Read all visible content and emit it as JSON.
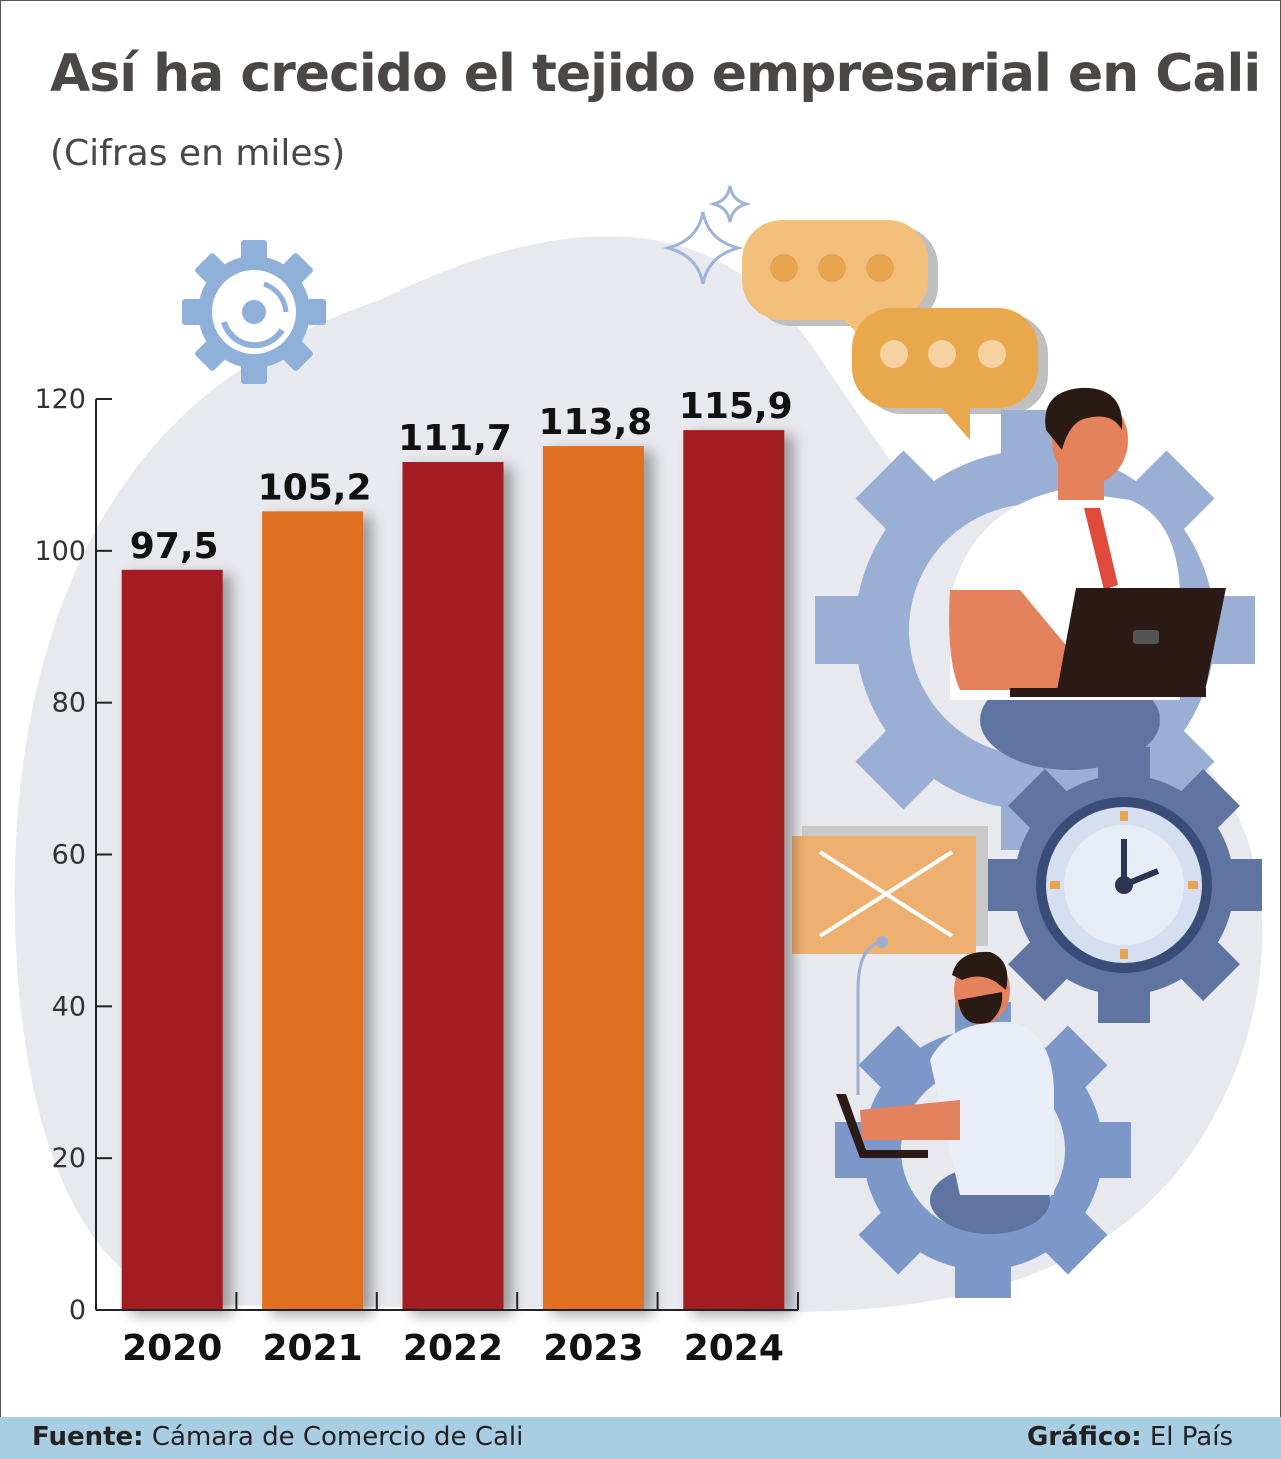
{
  "title": "Así ha crecido el tejido empresarial en Cali",
  "subtitle": "(Cifras en miles)",
  "footer": {
    "source_label": "Fuente:",
    "source_value": "Cámara de Comercio de Cali",
    "credit_label": "Gráfico:",
    "credit_value": "El País"
  },
  "colors": {
    "dark_red": "#a31c22",
    "orange": "#e07020",
    "footer_bg": "#a9cde2",
    "blob": "#e8e9ee"
  },
  "chart_data": {
    "type": "bar",
    "categories": [
      "2020",
      "2021",
      "2022",
      "2023",
      "2024"
    ],
    "values": [
      97.5,
      105.2,
      111.7,
      113.8,
      115.9
    ],
    "value_labels": [
      "97,5",
      "105,2",
      "111,7",
      "113,8",
      "115,9"
    ],
    "bar_colors": [
      "#a31c22",
      "#e07020",
      "#a31c22",
      "#e07020",
      "#a31c22"
    ],
    "ylim": [
      0,
      120
    ],
    "yticks": [
      "0",
      "20",
      "40",
      "60",
      "80",
      "100",
      "120"
    ],
    "grid": false
  },
  "illustration_icons": [
    "gear-icon",
    "sparkle-icon",
    "chat-bubble-icon",
    "businessman-laptop-icon",
    "clock-gear-icon",
    "envelope-icon",
    "bearded-man-laptop-icon"
  ]
}
